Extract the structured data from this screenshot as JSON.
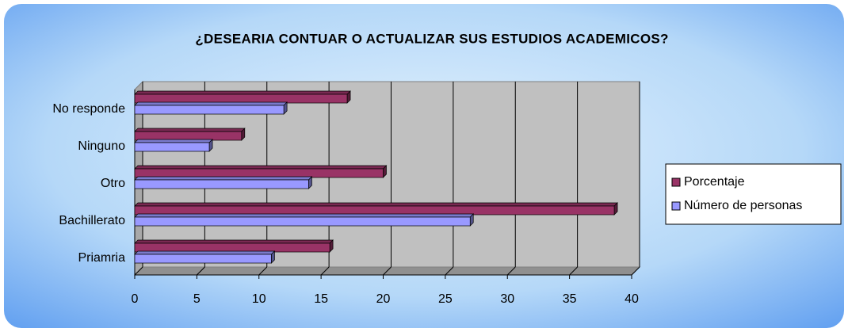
{
  "chart_data": {
    "type": "bar3d_horizontal",
    "title": "¿DESEARIA CONTUAR O ACTUALIZAR SUS ESTUDIOS ACADEMICOS?",
    "categories": [
      "No responde",
      "Ninguno",
      "Otro",
      "Bachillerato",
      "Priamria"
    ],
    "series": [
      {
        "name": "Porcentaje",
        "color": "#993366",
        "values": [
          17.1,
          8.6,
          20,
          38.6,
          15.7
        ]
      },
      {
        "name": "Número de personas",
        "color": "#9999ff",
        "values": [
          12,
          6,
          14,
          27,
          11
        ]
      }
    ],
    "xlim": [
      0,
      40
    ],
    "xticks": [
      0,
      5,
      10,
      15,
      20,
      25,
      30,
      35,
      40
    ],
    "grid": true,
    "legend": "right"
  }
}
